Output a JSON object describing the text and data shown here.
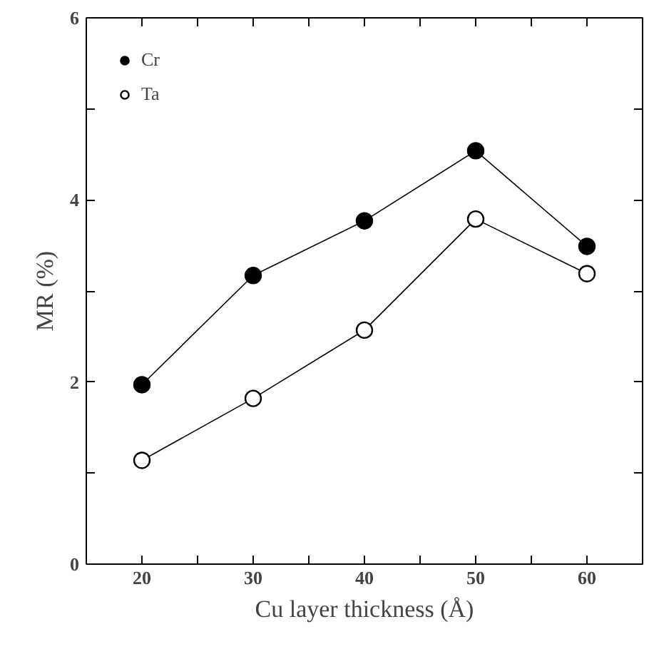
{
  "chart_data": {
    "type": "line",
    "xlabel": "Cu layer thickness (Å)",
    "ylabel": "MR (%)",
    "x": [
      20,
      30,
      40,
      50,
      60
    ],
    "series": [
      {
        "name": "Cr",
        "color": "#000000",
        "values": [
          1.97,
          3.17,
          3.77,
          4.54,
          3.49
        ]
      },
      {
        "name": "Ta",
        "color": "#000000",
        "values": [
          1.14,
          1.82,
          2.57,
          3.79,
          3.19
        ]
      }
    ],
    "xlim": [
      15,
      65
    ],
    "ylim": [
      0,
      6
    ],
    "xticks": [
      20,
      {
        "value": 25,
        "label": null
      },
      30,
      {
        "value": 35,
        "label": null
      },
      40,
      {
        "value": 45,
        "label": null
      },
      50,
      {
        "value": 55,
        "label": null
      },
      60
    ],
    "yticks": [
      0,
      {
        "value": 1,
        "label": null
      },
      2,
      {
        "value": 3,
        "label": null
      },
      4,
      {
        "value": 5,
        "label": null
      },
      6
    ],
    "grid": false,
    "legend": "top left",
    "marker": "circle",
    "line_style": "solid"
  }
}
